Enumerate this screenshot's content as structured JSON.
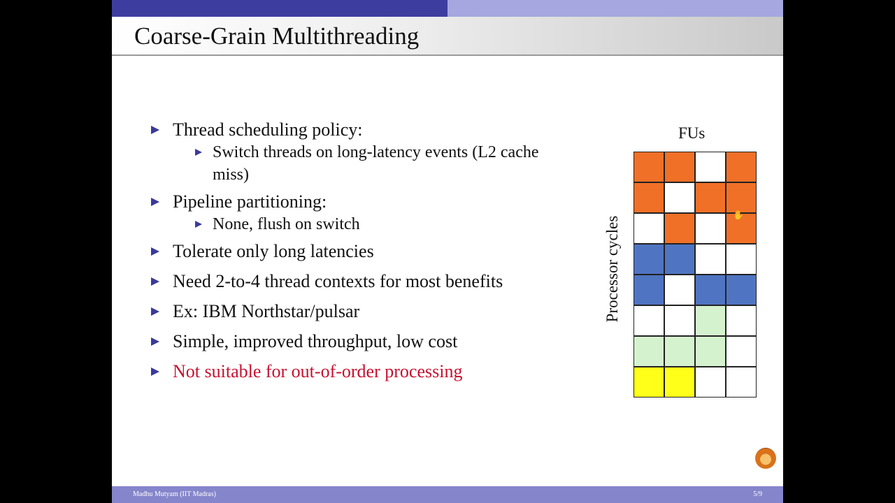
{
  "slide": {
    "title": "Coarse-Grain Multithreading",
    "bullets": [
      {
        "text": "Thread scheduling policy:",
        "sub": [
          "Switch threads on long-latency events (L2 cache",
          "miss)"
        ]
      },
      {
        "text": "Pipeline partitioning:",
        "sub": [
          "None, flush on switch"
        ]
      },
      {
        "text": "Tolerate only long latencies",
        "sub": []
      },
      {
        "text": "Need 2-to-4 thread contexts for most benefits",
        "sub": []
      },
      {
        "text": "Ex: IBM Northstar/pulsar",
        "sub": []
      },
      {
        "text": "Simple, improved throughput, low cost",
        "sub": []
      },
      {
        "text": "Not suitable for out-of-order processing",
        "sub": [],
        "highlight": true
      }
    ],
    "diagram": {
      "columns_label": "FUs",
      "rows_label": "Processor cycles",
      "colors": {
        "O": "#f07027",
        "B": "#4f75c2",
        "G": "#d5f2cf",
        "Y": "#ffff1a",
        "W": "#ffffff"
      },
      "rows": [
        "OOWO",
        "OWOO",
        "WOWO",
        "BBWW",
        "BWBB",
        "WWGW",
        "GGGW",
        "YYWW"
      ]
    },
    "footer": {
      "author": "Madhu Mutyam (IIT Madras)",
      "page": "5/9"
    },
    "logo_icon": "iit-madras-logo-icon",
    "cursor_icon": "hand-cursor-icon"
  }
}
